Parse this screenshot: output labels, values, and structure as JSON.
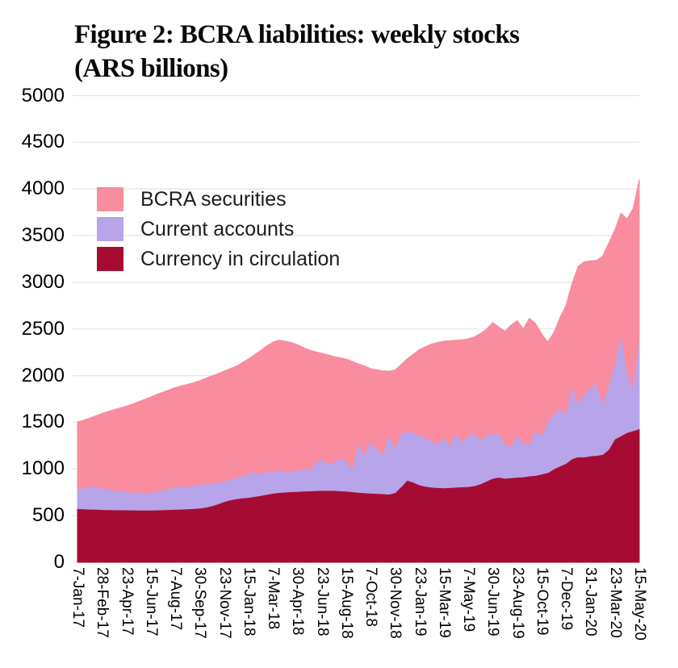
{
  "title": {
    "line1": "Figure 2: BCRA liabilities: weekly stocks",
    "line2": "(ARS billions)"
  },
  "chart_data": {
    "type": "area",
    "stacked": true,
    "title": "Figure 2: BCRA liabilities: weekly stocks (ARS billions)",
    "xlabel": "",
    "ylabel": "",
    "ylim": [
      0,
      5000
    ],
    "y_ticks": [
      0,
      500,
      1000,
      1500,
      2000,
      2500,
      3000,
      3500,
      4000,
      4500,
      5000
    ],
    "grid": "horizontal",
    "grid_color": "#e6e6e6",
    "background": "#ffffff",
    "legend_position": "top-left-inside",
    "x_tick_labels": [
      "7-Jan-17",
      "28-Feb-17",
      "23-Apr-17",
      "15-Jun-17",
      "7-Aug-17",
      "30-Sep-17",
      "23-Nov-17",
      "15-Jan-18",
      "7-Mar-18",
      "30-Apr-18",
      "23-Jun-18",
      "15-Aug-18",
      "7-Oct-18",
      "30-Nov-18",
      "23-Jan-19",
      "15-Mar-19",
      "7-May-19",
      "30-Jun-19",
      "23-Aug-19",
      "15-Oct-19",
      "7-Dec-19",
      "31-Jan-20",
      "23-Mar-20",
      "15-May-20"
    ],
    "series": [
      {
        "name": "Currency in circulation",
        "color": "#A60C33",
        "values": [
          575,
          572,
          570,
          568,
          565,
          564,
          563,
          562,
          562,
          561,
          560,
          560,
          560,
          561,
          563,
          565,
          567,
          570,
          573,
          576,
          580,
          590,
          605,
          625,
          650,
          668,
          681,
          690,
          695,
          705,
          715,
          728,
          740,
          748,
          752,
          756,
          758,
          762,
          765,
          768,
          770,
          772,
          770,
          766,
          762,
          756,
          750,
          744,
          740,
          738,
          735,
          730,
          745,
          810,
          880,
          858,
          830,
          815,
          805,
          800,
          798,
          800,
          805,
          808,
          812,
          820,
          840,
          870,
          900,
          912,
          900,
          905,
          912,
          915,
          925,
          930,
          945,
          960,
          1000,
          1030,
          1060,
          1110,
          1130,
          1128,
          1140,
          1145,
          1155,
          1210,
          1320,
          1355,
          1390,
          1410,
          1430
        ]
      },
      {
        "name": "Current accounts",
        "color": "#B8A4E8",
        "values": [
          210,
          228,
          252,
          242,
          235,
          218,
          207,
          214,
          196,
          187,
          193,
          182,
          188,
          201,
          213,
          225,
          241,
          248,
          239,
          249,
          250,
          250,
          243,
          233,
          220,
          220,
          224,
          238,
          260,
          263,
          230,
          247,
          228,
          244,
          210,
          230,
          224,
          250,
          225,
          300,
          338,
          276,
          302,
          358,
          332,
          244,
          530,
          416,
          555,
          482,
          425,
          640,
          485,
          575,
          520,
          537,
          525,
          525,
          495,
          470,
          542,
          458,
          585,
          482,
          548,
          570,
          470,
          500,
          475,
          481,
          370,
          335,
          458,
          365,
          340,
          490,
          415,
          540,
          590,
          610,
          540,
          770,
          585,
          672,
          730,
          772,
          545,
          690,
          800,
          1085,
          660,
          470,
          1000
        ]
      },
      {
        "name": "BCRA securities",
        "color": "#F98C9F",
        "values": [
          720,
          722,
          723,
          760,
          795,
          833,
          866,
          879,
          914,
          947,
          967,
          1004,
          1024,
          1038,
          1047,
          1058,
          1064,
          1072,
          1094,
          1100,
          1115,
          1132,
          1150,
          1164,
          1178,
          1187,
          1195,
          1212,
          1225,
          1257,
          1325,
          1345,
          1390,
          1388,
          1408,
          1369,
          1350,
          1290,
          1282,
          1188,
          1132,
          1174,
          1133,
          1068,
          1084,
          1152,
          845,
          945,
          780,
          842,
          892,
          678,
          830,
          735,
          780,
          835,
          925,
          970,
          1040,
          1085,
          1030,
          1117,
          990,
          1095,
          1035,
          1025,
          1140,
          1130,
          1195,
          1127,
          1205,
          1300,
          1220,
          1220,
          1350,
          1140,
          1090,
          860,
          870,
          980,
          1150,
          1110,
          1455,
          1420,
          1360,
          1318,
          1580,
          1520,
          1440,
          1300,
          1630,
          1910,
          1670
        ]
      }
    ]
  }
}
